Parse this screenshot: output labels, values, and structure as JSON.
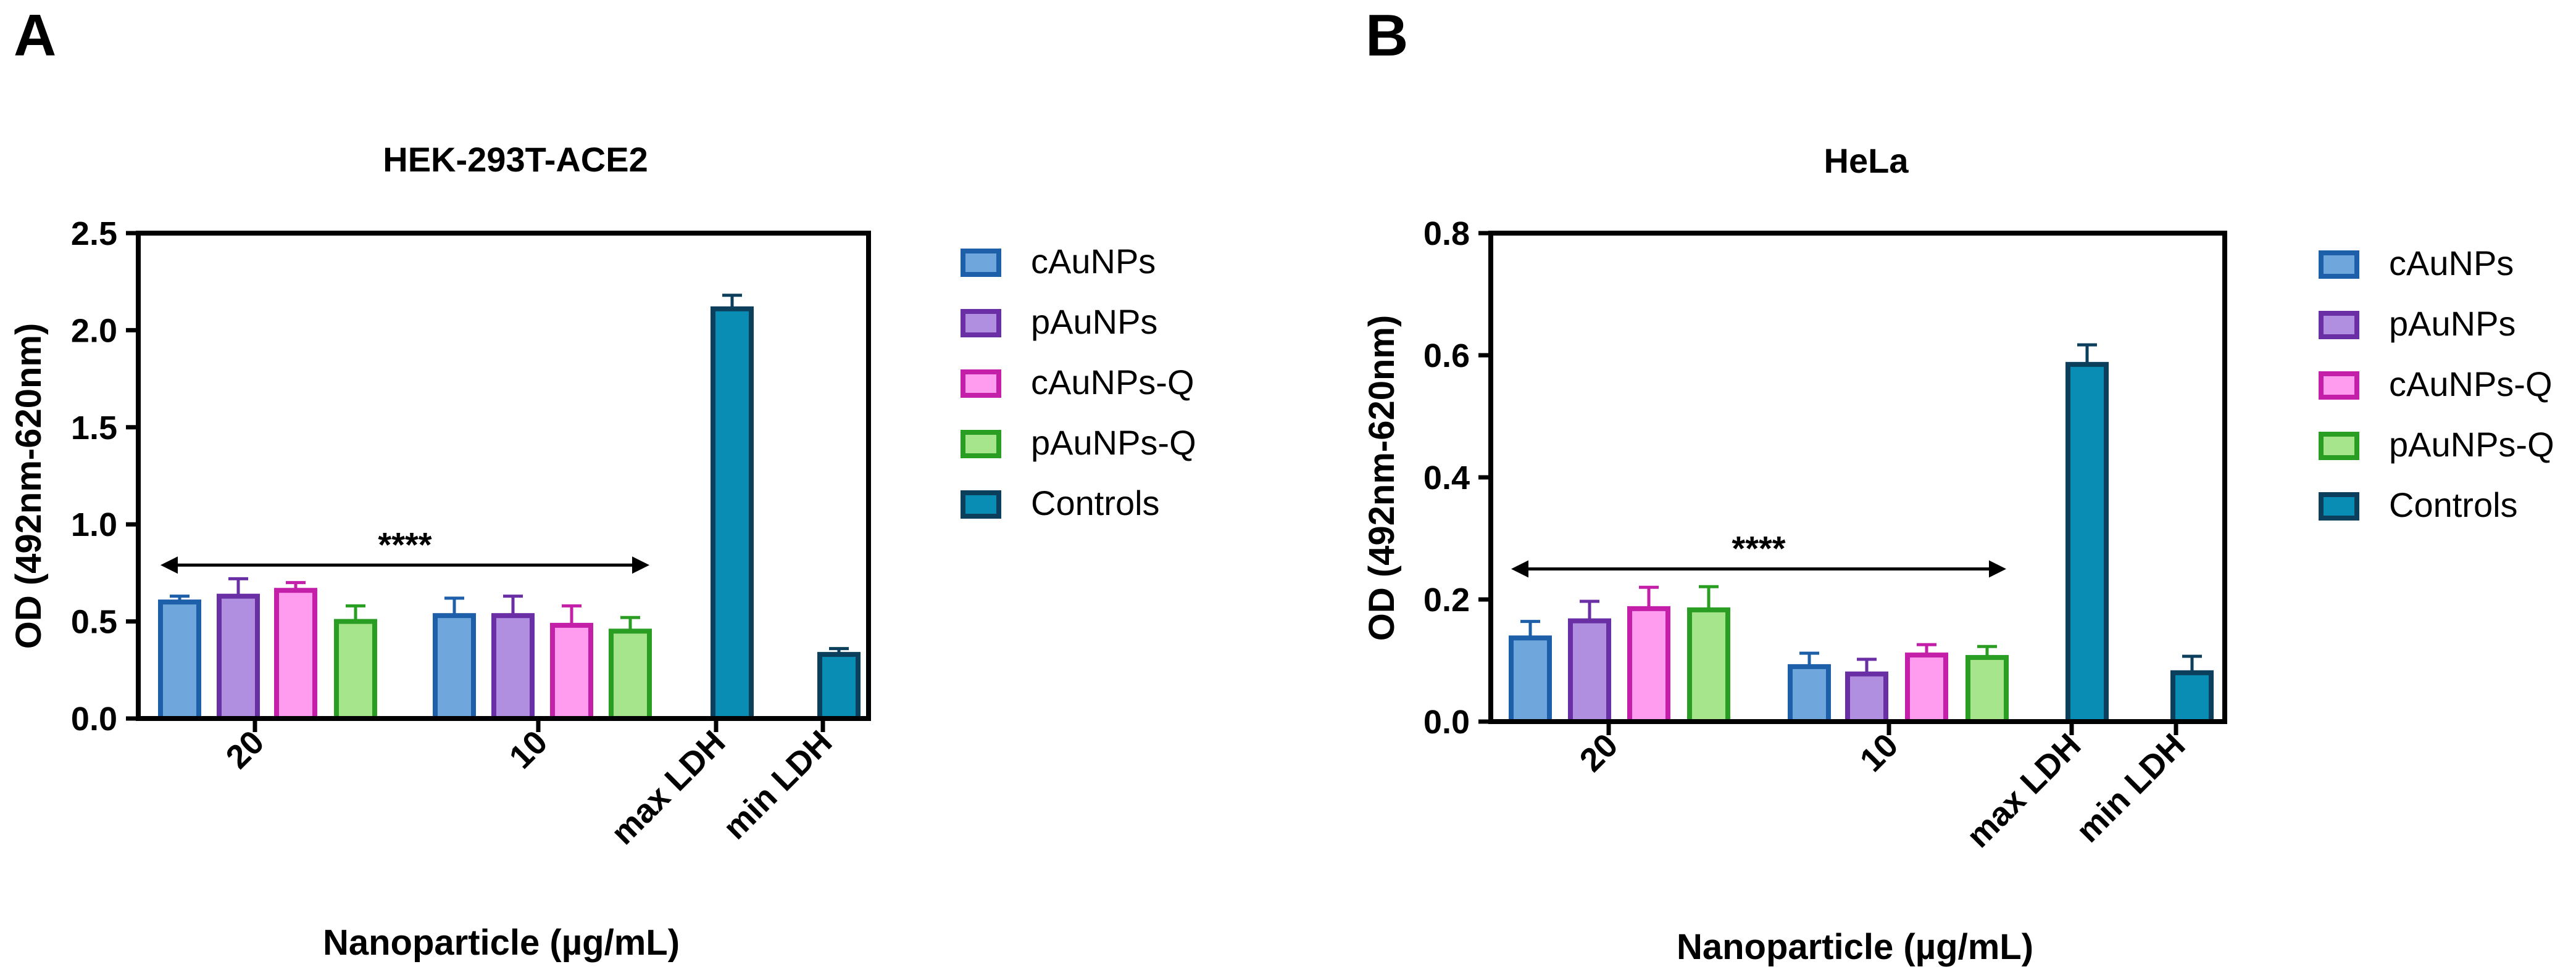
{
  "palette": {
    "cAuNPs": {
      "fill": "#6fa7dc",
      "stroke": "#1d5fa8"
    },
    "pAuNPs": {
      "fill": "#b08ee0",
      "stroke": "#6a2fa5"
    },
    "cAuNPs-Q": {
      "fill": "#ff9cf0",
      "stroke": "#c31fa8"
    },
    "pAuNPs-Q": {
      "fill": "#a6e58c",
      "stroke": "#2a9d23"
    },
    "Controls": {
      "fill": "#0a8db5",
      "stroke": "#0b3f5c"
    }
  },
  "chart_data": [
    {
      "panel": "A",
      "type": "bar",
      "title": "HEK-293T-ACE2",
      "xlabel": "Nanoparticle (µg/mL)",
      "ylabel": "OD (492nm-620nm)",
      "ylim": [
        0,
        2.5
      ],
      "yticks": [
        "0.0",
        "0.5",
        "1.0",
        "1.5",
        "2.0",
        "2.5"
      ],
      "ytick_values": [
        0,
        0.5,
        1.0,
        1.5,
        2.0,
        2.5
      ],
      "categories": [
        "20",
        "10",
        "max LDH",
        "min LDH"
      ],
      "legend": [
        "cAuNPs",
        "pAuNPs",
        "cAuNPs-Q",
        "pAuNPs-Q",
        "Controls"
      ],
      "bars": [
        {
          "category": "20",
          "series": "cAuNPs",
          "value": 0.6,
          "error": 0.03
        },
        {
          "category": "20",
          "series": "pAuNPs",
          "value": 0.63,
          "error": 0.09
        },
        {
          "category": "20",
          "series": "cAuNPs-Q",
          "value": 0.66,
          "error": 0.04
        },
        {
          "category": "20",
          "series": "pAuNPs-Q",
          "value": 0.5,
          "error": 0.08
        },
        {
          "category": "10",
          "series": "cAuNPs",
          "value": 0.53,
          "error": 0.09
        },
        {
          "category": "10",
          "series": "pAuNPs",
          "value": 0.53,
          "error": 0.1
        },
        {
          "category": "10",
          "series": "cAuNPs-Q",
          "value": 0.48,
          "error": 0.1
        },
        {
          "category": "10",
          "series": "pAuNPs-Q",
          "value": 0.45,
          "error": 0.07
        },
        {
          "category": "max LDH",
          "series": "Controls",
          "value": 2.11,
          "error": 0.07
        },
        {
          "category": "min LDH",
          "series": "Controls",
          "value": 0.33,
          "error": 0.03
        }
      ],
      "significance": {
        "label": "****",
        "level": 0.79
      }
    },
    {
      "panel": "B",
      "type": "bar",
      "title": "HeLa",
      "xlabel": "Nanoparticle (µg/mL)",
      "ylabel": "OD (492nm-620nm)",
      "ylim": [
        0,
        0.8
      ],
      "yticks": [
        "0.0",
        "0.2",
        "0.4",
        "0.6",
        "0.8"
      ],
      "ytick_values": [
        0,
        0.2,
        0.4,
        0.6,
        0.8
      ],
      "categories": [
        "20",
        "10",
        "max LDH",
        "min LDH"
      ],
      "legend": [
        "cAuNPs",
        "pAuNPs",
        "cAuNPs-Q",
        "pAuNPs-Q",
        "Controls"
      ],
      "bars": [
        {
          "category": "20",
          "series": "cAuNPs",
          "value": 0.137,
          "error": 0.027
        },
        {
          "category": "20",
          "series": "pAuNPs",
          "value": 0.165,
          "error": 0.032
        },
        {
          "category": "20",
          "series": "cAuNPs-Q",
          "value": 0.185,
          "error": 0.035
        },
        {
          "category": "20",
          "series": "pAuNPs-Q",
          "value": 0.183,
          "error": 0.038
        },
        {
          "category": "10",
          "series": "cAuNPs",
          "value": 0.09,
          "error": 0.022
        },
        {
          "category": "10",
          "series": "pAuNPs",
          "value": 0.078,
          "error": 0.024
        },
        {
          "category": "10",
          "series": "cAuNPs-Q",
          "value": 0.109,
          "error": 0.017
        },
        {
          "category": "10",
          "series": "pAuNPs-Q",
          "value": 0.105,
          "error": 0.018
        },
        {
          "category": "max LDH",
          "series": "Controls",
          "value": 0.585,
          "error": 0.032
        },
        {
          "category": "min LDH",
          "series": "Controls",
          "value": 0.08,
          "error": 0.027
        }
      ],
      "significance": {
        "label": "****",
        "level": 0.25
      }
    }
  ]
}
